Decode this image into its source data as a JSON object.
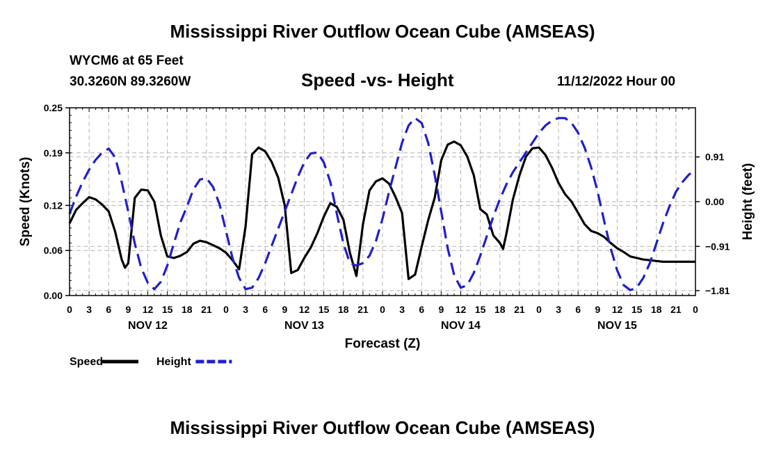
{
  "page": {
    "main_title": "Mississippi River Outflow Ocean Cube (AMSEAS)",
    "station": "WYCM6 at 65 Feet",
    "coords": "30.3260N  89.3260W",
    "subtitle": "Speed -vs- Height",
    "datetime": "11/12/2022 Hour 00",
    "footer_title": "Mississippi River Outflow Ocean Cube (AMSEAS)"
  },
  "chart_data": {
    "type": "line",
    "title": "Speed -vs- Height",
    "xlabel": "Forecast (Z)",
    "ylabel": "Speed (Knots)",
    "y2label": "Height (feet)",
    "xlim": [
      0,
      96
    ],
    "ylim": [
      0.0,
      0.25
    ],
    "y2lim": [
      -1.91,
      1.91
    ],
    "x_tick_labels": [
      "0",
      "3",
      "6",
      "9",
      "12",
      "15",
      "18",
      "21",
      "0",
      "3",
      "6",
      "9",
      "12",
      "15",
      "18",
      "21",
      "0",
      "3",
      "6",
      "9",
      "12",
      "15",
      "18",
      "21",
      "0",
      "3",
      "6",
      "9",
      "12",
      "15",
      "18",
      "21",
      "0"
    ],
    "day_labels": [
      {
        "label": "NOV 12",
        "x": 12
      },
      {
        "label": "NOV 13",
        "x": 36
      },
      {
        "label": "NOV 14",
        "x": 60
      },
      {
        "label": "NOV 15",
        "x": 84
      }
    ],
    "y_ticks": [
      {
        "value": 0.0,
        "label": "0.00"
      },
      {
        "value": 0.06,
        "label": "0.06"
      },
      {
        "value": 0.12,
        "label": "0.12"
      },
      {
        "value": 0.19,
        "label": "0.19"
      },
      {
        "value": 0.25,
        "label": "0.25"
      }
    ],
    "y2_ticks": [
      {
        "value": 0.91,
        "label": "0.91"
      },
      {
        "value": 0.0,
        "label": "0.00"
      },
      {
        "value": -0.91,
        "label": "−0.91"
      },
      {
        "value": -1.81,
        "label": "−1.81"
      }
    ],
    "series": [
      {
        "name": "Speed",
        "color": "#000000",
        "dash": "solid",
        "axis": "left",
        "x": [
          0,
          1,
          2,
          3,
          4,
          5,
          6,
          7,
          8,
          8.5,
          9,
          10,
          11,
          12,
          13,
          14,
          15,
          16,
          17,
          18,
          19,
          20,
          21,
          22,
          23,
          24,
          25,
          26,
          27,
          28,
          29,
          30,
          31,
          32,
          33,
          34,
          35,
          36,
          37,
          38,
          39,
          40,
          41,
          42,
          43,
          44,
          45,
          46,
          47,
          48,
          49,
          50,
          51,
          52,
          53,
          54,
          55,
          56,
          56.5,
          57,
          58,
          59,
          60,
          61,
          62,
          63,
          64,
          65,
          66,
          66.5,
          67,
          68,
          69,
          70,
          71,
          72,
          73,
          74,
          75,
          76,
          77,
          78,
          79,
          80,
          81,
          82,
          83,
          84,
          85,
          86,
          87,
          88,
          89,
          90,
          91,
          92,
          93,
          94,
          95,
          96
        ],
        "y": [
          0.096,
          0.114,
          0.123,
          0.131,
          0.128,
          0.121,
          0.112,
          0.085,
          0.048,
          0.037,
          0.043,
          0.13,
          0.141,
          0.14,
          0.125,
          0.08,
          0.052,
          0.05,
          0.053,
          0.058,
          0.069,
          0.073,
          0.071,
          0.067,
          0.063,
          0.057,
          0.047,
          0.035,
          0.092,
          0.188,
          0.197,
          0.192,
          0.178,
          0.157,
          0.12,
          0.03,
          0.034,
          0.05,
          0.064,
          0.083,
          0.105,
          0.123,
          0.118,
          0.101,
          0.057,
          0.026,
          0.095,
          0.14,
          0.152,
          0.156,
          0.149,
          0.131,
          0.11,
          0.022,
          0.028,
          0.065,
          0.1,
          0.13,
          0.155,
          0.18,
          0.201,
          0.205,
          0.2,
          0.185,
          0.16,
          0.115,
          0.108,
          0.08,
          0.07,
          0.062,
          0.082,
          0.128,
          0.16,
          0.185,
          0.196,
          0.197,
          0.187,
          0.17,
          0.15,
          0.135,
          0.125,
          0.11,
          0.095,
          0.086,
          0.083,
          0.078,
          0.07,
          0.063,
          0.058,
          0.052,
          0.05,
          0.048,
          0.047,
          0.046,
          0.045,
          0.045,
          0.045,
          0.045,
          0.045,
          0.045
        ]
      },
      {
        "name": "Height",
        "color": "#1f1fcc",
        "dash": "dashed",
        "axis": "right",
        "x": [
          0,
          1,
          2,
          3,
          4,
          5,
          6,
          7,
          8,
          9,
          10,
          11,
          12,
          13,
          14,
          15,
          16,
          17,
          18,
          19,
          20,
          21,
          22,
          23,
          24,
          25,
          26,
          27,
          28,
          29,
          30,
          31,
          32,
          33,
          34,
          35,
          36,
          37,
          38,
          39,
          40,
          41,
          42,
          43,
          44,
          45,
          46,
          47,
          48,
          49,
          50,
          51,
          52,
          53,
          54,
          55,
          56,
          57,
          58,
          59,
          60,
          61,
          62,
          63,
          64,
          65,
          66,
          67,
          68,
          69,
          70,
          71,
          72,
          73,
          74,
          75,
          76,
          77,
          78,
          79,
          80,
          81,
          82,
          83,
          84,
          85,
          86,
          87,
          88,
          89,
          90,
          91,
          92,
          93,
          94,
          95,
          96
        ],
        "y": [
          -0.25,
          0.1,
          0.4,
          0.65,
          0.85,
          1.0,
          1.08,
          0.9,
          0.4,
          -0.2,
          -0.85,
          -1.35,
          -1.65,
          -1.78,
          -1.63,
          -1.3,
          -0.85,
          -0.42,
          -0.1,
          0.25,
          0.45,
          0.48,
          0.3,
          -0.05,
          -0.6,
          -1.15,
          -1.55,
          -1.78,
          -1.75,
          -1.55,
          -1.25,
          -0.9,
          -0.55,
          -0.2,
          0.15,
          0.5,
          0.8,
          0.98,
          1.0,
          0.8,
          0.4,
          -0.25,
          -0.85,
          -1.25,
          -1.3,
          -1.25,
          -1.1,
          -0.8,
          -0.35,
          0.2,
          0.7,
          1.2,
          1.55,
          1.7,
          1.6,
          1.2,
          0.55,
          -0.2,
          -0.95,
          -1.5,
          -1.75,
          -1.7,
          -1.45,
          -1.1,
          -0.7,
          -0.3,
          0.05,
          0.35,
          0.6,
          0.8,
          1.0,
          1.2,
          1.4,
          1.55,
          1.65,
          1.7,
          1.7,
          1.6,
          1.4,
          1.1,
          0.7,
          0.2,
          -0.4,
          -0.95,
          -1.4,
          -1.7,
          -1.8,
          -1.75,
          -1.55,
          -1.25,
          -0.85,
          -0.45,
          -0.1,
          0.2,
          0.4,
          0.55,
          0.65
        ]
      }
    ],
    "legend": {
      "placement": "bottom-left",
      "entries": [
        {
          "label": "Speed",
          "color": "#000000",
          "dash": "solid"
        },
        {
          "label": "Height",
          "color": "#1f1fcc",
          "dash": "dashed"
        }
      ]
    }
  }
}
